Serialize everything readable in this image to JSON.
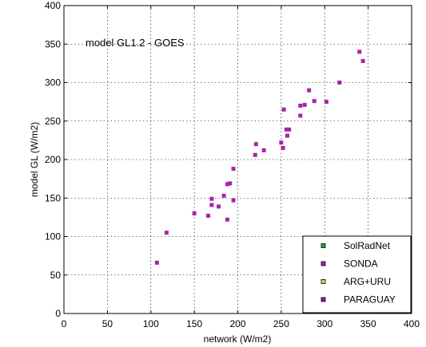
{
  "chart_data": {
    "type": "scatter",
    "annotation": "model GL1.2 - GOES",
    "xlabel": "network (W/m2)",
    "ylabel": "model GL (W/m2)",
    "xlim": [
      0,
      400
    ],
    "ylim": [
      0,
      400
    ],
    "xticks": [
      "0",
      "50",
      "100",
      "150",
      "200",
      "250",
      "300",
      "350",
      "400"
    ],
    "yticks": [
      "0",
      "50",
      "100",
      "150",
      "200",
      "250",
      "300",
      "350",
      "400"
    ],
    "grid": true,
    "legend_position": "bottom-right",
    "series": [
      {
        "name": "SolRadNet",
        "marker": "square",
        "color": "#22aa22",
        "points": []
      },
      {
        "name": "SONDA",
        "marker": "square",
        "color": "#aa22aa",
        "points": [
          [
            107,
            66
          ],
          [
            118,
            105
          ],
          [
            150,
            130
          ],
          [
            166,
            127
          ],
          [
            170,
            149
          ],
          [
            170,
            141
          ],
          [
            178,
            139
          ],
          [
            184,
            153
          ],
          [
            188,
            168
          ],
          [
            188,
            122
          ],
          [
            191,
            169
          ],
          [
            195,
            147
          ],
          [
            195,
            188
          ],
          [
            220,
            206
          ],
          [
            221,
            220
          ],
          [
            230,
            212
          ],
          [
            250,
            222
          ],
          [
            252,
            215
          ],
          [
            253,
            265
          ],
          [
            256,
            239
          ],
          [
            257,
            231
          ],
          [
            259,
            239
          ],
          [
            272,
            270
          ],
          [
            272,
            257
          ],
          [
            277,
            271
          ],
          [
            282,
            290
          ],
          [
            288,
            276
          ],
          [
            302,
            275
          ],
          [
            317,
            300
          ],
          [
            340,
            340
          ],
          [
            344,
            328
          ]
        ]
      },
      {
        "name": "ARG+URU",
        "marker": "square",
        "color": "#dddd44",
        "points": []
      },
      {
        "name": "PARAGUAY",
        "marker": "square",
        "color": "#8822aa",
        "points": []
      }
    ]
  }
}
